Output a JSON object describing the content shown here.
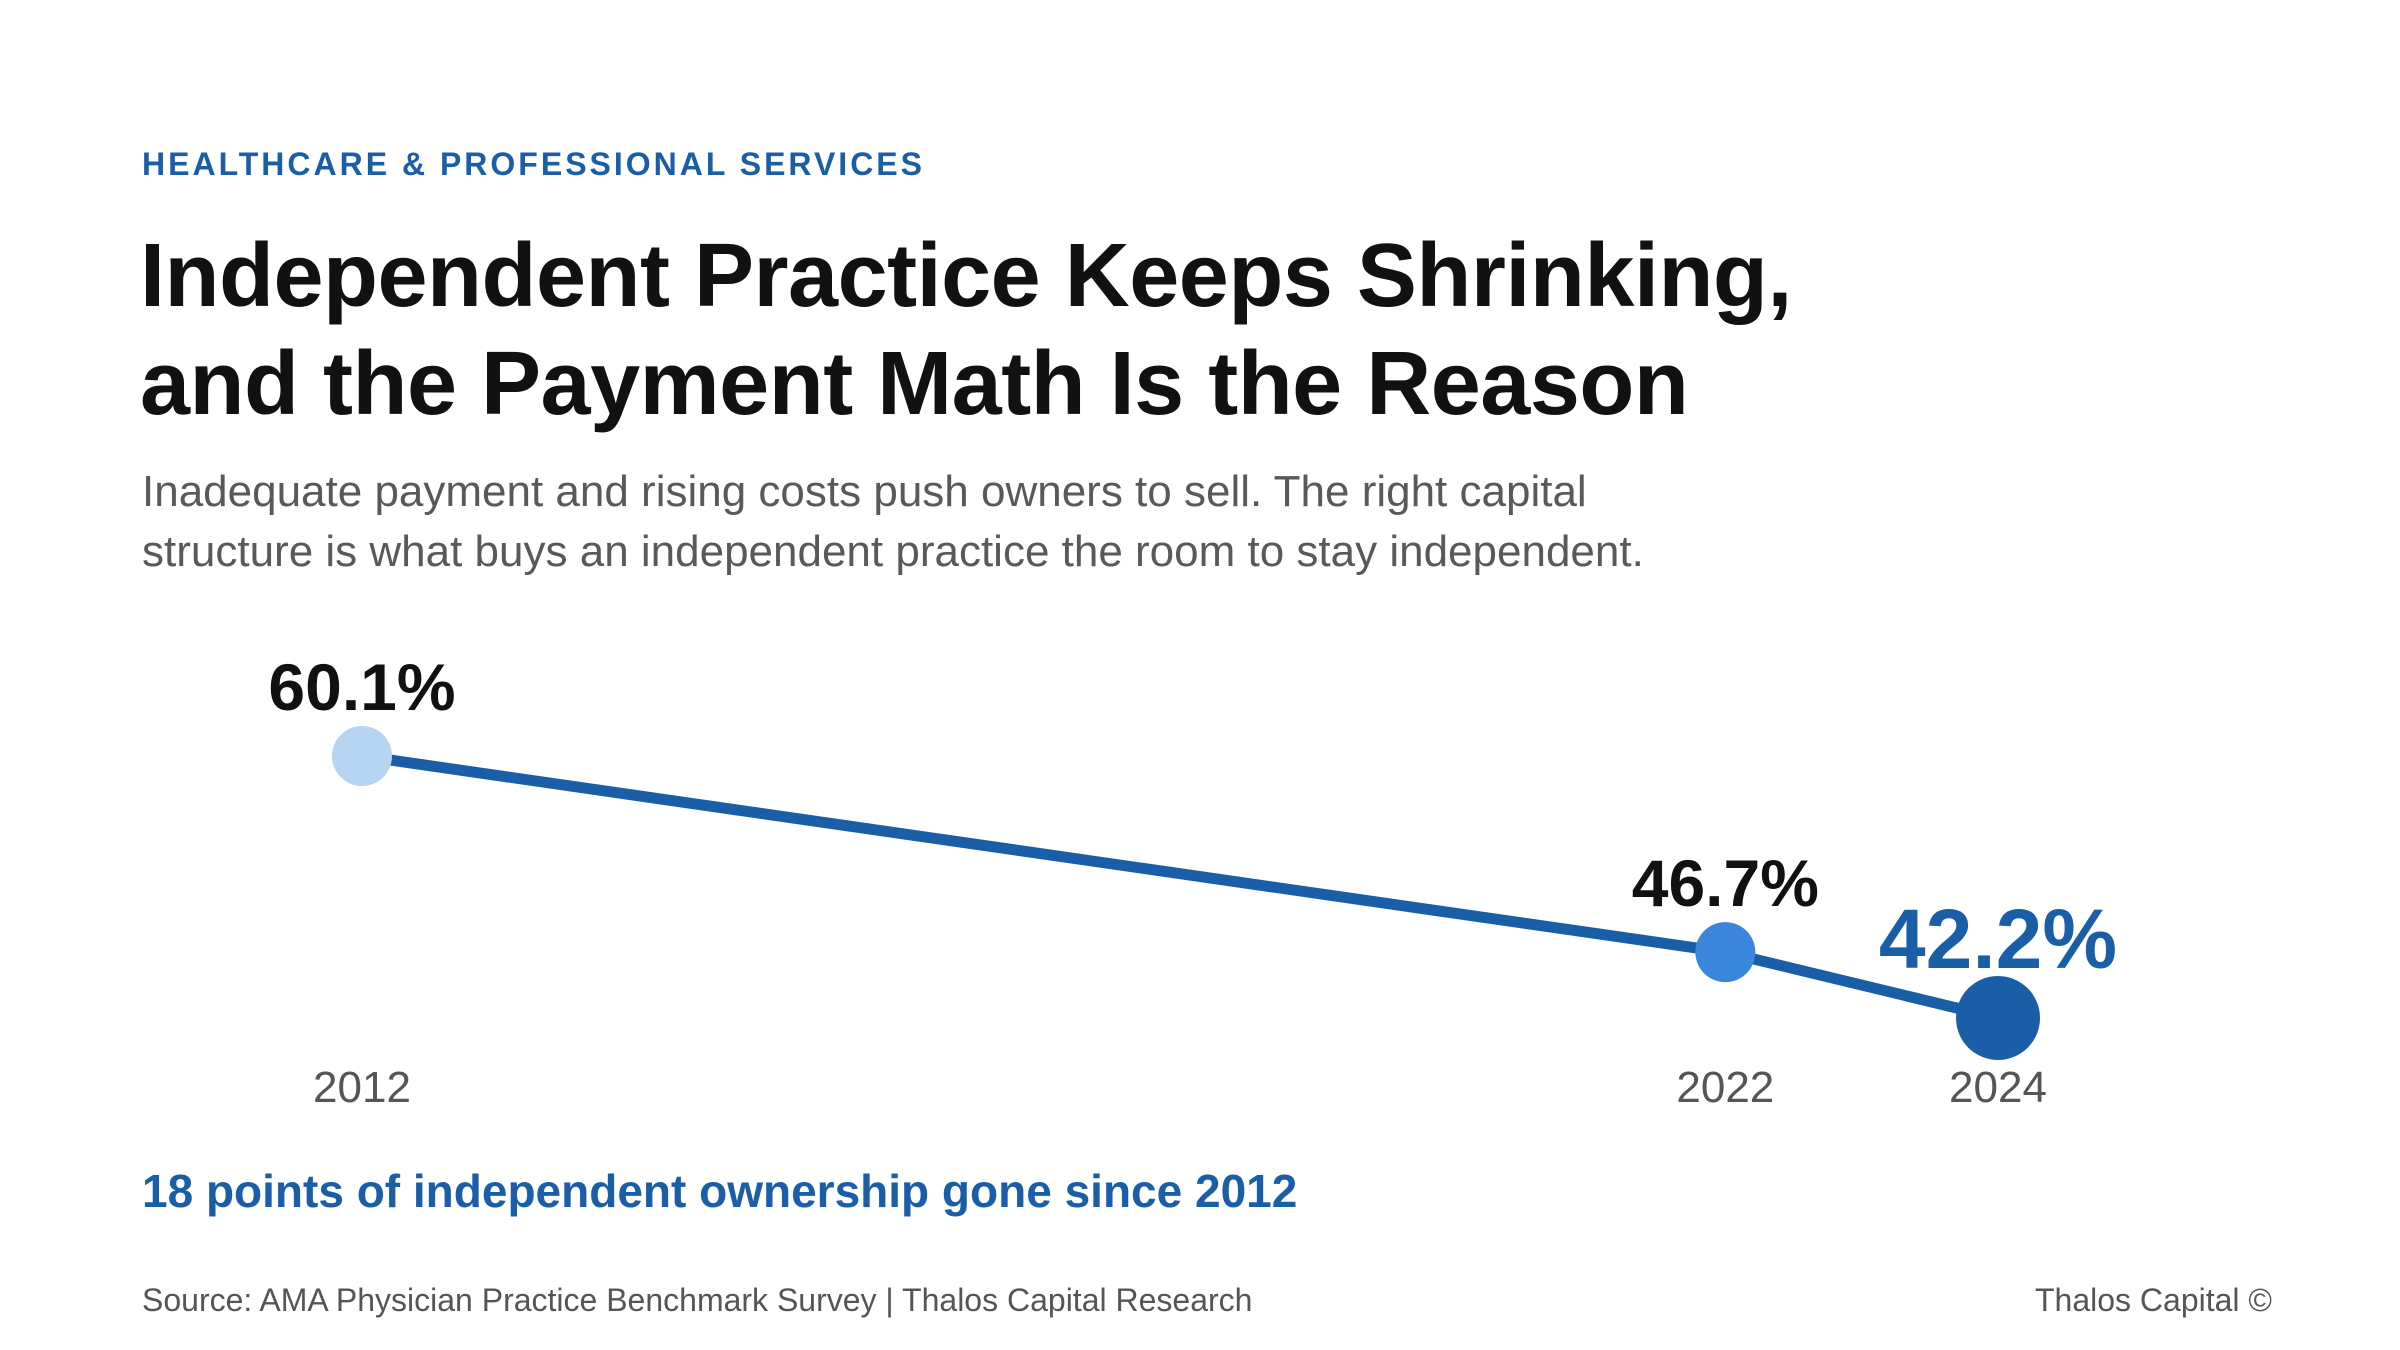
{
  "kicker": "HEALTHCARE & PROFESSIONAL SERVICES",
  "title_line1": "Independent Practice Keeps Shrinking,",
  "title_line2": "and the Payment Math Is the Reason",
  "subtitle_line1": "Inadequate payment and rising costs push owners to sell. The right capital",
  "subtitle_line2": "structure is what buys an independent practice the room to stay independent.",
  "takeaway": "18 points of independent ownership gone since 2012",
  "footer": {
    "source": "Source: AMA Physician Practice Benchmark Survey | Thalos Capital Research",
    "brand": "Thalos Capital ©"
  },
  "colors": {
    "line": "#1b5ea8",
    "point_2012": "#b7d4f2",
    "point_2022": "#3a86dd",
    "point_2024": "#1b5ea8",
    "label_dark": "#111111",
    "label_highlight": "#1b5ea8",
    "tick_text": "#555555"
  },
  "chart_data": {
    "type": "line",
    "title": "",
    "xlabel": "",
    "ylabel": "",
    "x": [
      2012,
      2022,
      2024
    ],
    "values": [
      60.1,
      46.7,
      42.2
    ],
    "tick_labels": [
      "2012",
      "2022",
      "2024"
    ],
    "data_labels": [
      "60.1%",
      "46.7%",
      "42.2%"
    ],
    "highlight_index": 2,
    "grid": false,
    "legend": "none"
  }
}
